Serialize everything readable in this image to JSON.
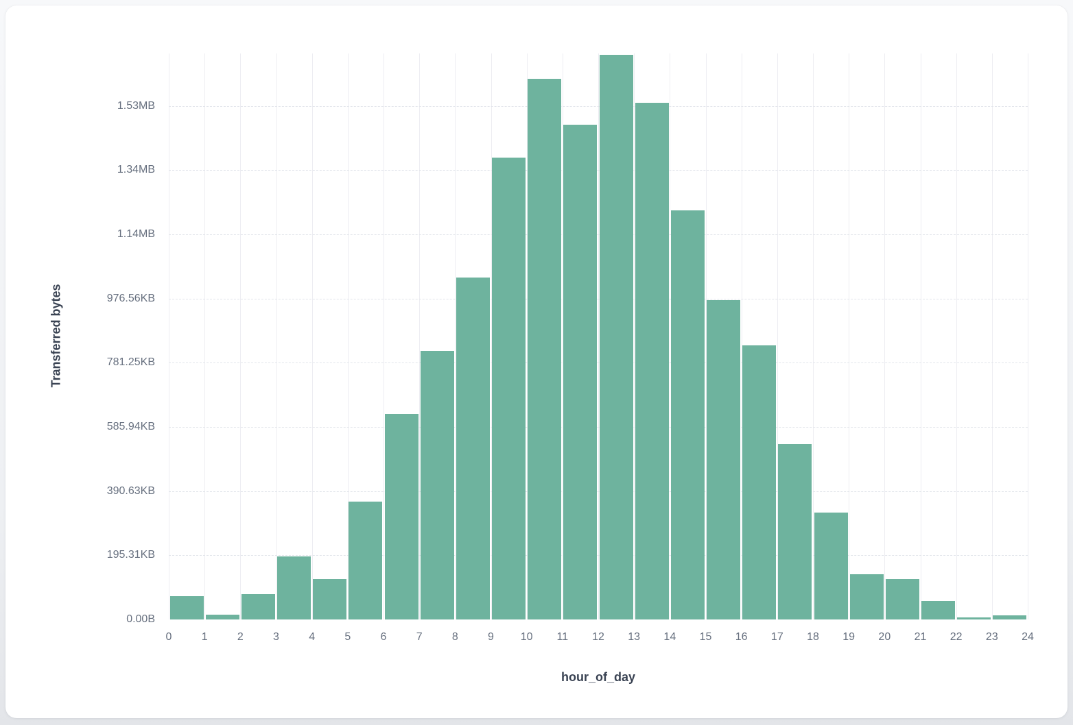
{
  "chart_data": {
    "type": "bar",
    "subtype": "histogram",
    "title": "",
    "xlabel": "hour_of_day",
    "ylabel": "Transferred bytes",
    "categories": [
      0,
      1,
      2,
      3,
      4,
      5,
      6,
      7,
      8,
      9,
      10,
      11,
      12,
      13,
      14,
      15,
      16,
      17,
      18,
      19,
      20,
      21,
      22,
      23
    ],
    "values_bytes": [
      72600,
      15600,
      79000,
      196500,
      125400,
      368000,
      641300,
      837200,
      1065000,
      1438800,
      1685600,
      1541300,
      1760400,
      1610900,
      1275000,
      995200,
      854900,
      546700,
      333200,
      140300,
      125400,
      58300,
      5800,
      12800
    ],
    "values_human": [
      "70.9KB",
      "15.2KB",
      "77.2KB",
      "191.9KB",
      "122.5KB",
      "359.4KB",
      "626.3KB",
      "817.6KB",
      "1.02MB",
      "1.37MB",
      "1.61MB",
      "1.47MB",
      "1.68MB",
      "1.54MB",
      "1.22MB",
      "971.9KB",
      "834.9KB",
      "533.9KB",
      "325.4KB",
      "137.0KB",
      "122.5KB",
      "56.9KB",
      "5.7KB",
      "12.5KB"
    ],
    "x_tick_labels": [
      "0",
      "1",
      "2",
      "3",
      "4",
      "5",
      "6",
      "7",
      "8",
      "9",
      "10",
      "11",
      "12",
      "13",
      "14",
      "15",
      "16",
      "17",
      "18",
      "19",
      "20",
      "21",
      "22",
      "23",
      "24"
    ],
    "y_tick_labels": [
      "0.00B",
      "195.31KB",
      "390.63KB",
      "585.94KB",
      "781.25KB",
      "976.56KB",
      "1.14MB",
      "1.34MB",
      "1.53MB"
    ],
    "y_tick_interval_bytes": 200000,
    "ylim_bytes": [
      0,
      1764000
    ],
    "xlim": [
      0,
      24
    ],
    "grid": {
      "horizontal": "dashed",
      "vertical": "solid",
      "show": true
    },
    "legend_position": "none",
    "bar_color": "#6eb39e",
    "grid_color_vertical": "#ededf2",
    "grid_color_horizontal": "#e1e4ea",
    "tick_label_color": "#67707f",
    "axis_title_color": "#3a4353",
    "card_background": "#ffffff",
    "page_background": "#eef0f3"
  }
}
